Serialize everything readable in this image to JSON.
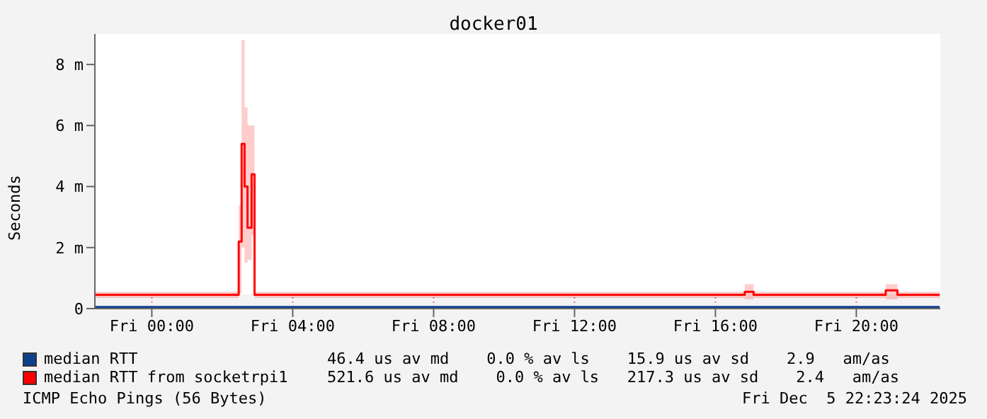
{
  "chart_data": {
    "type": "step",
    "title": "docker01",
    "ylabel": "Seconds",
    "xlim": [
      "2025-12-04T22:23",
      "2025-12-05T22:23"
    ],
    "xticks": [
      {
        "value": "2025-12-05T00:00",
        "label": "Fri 00:00"
      },
      {
        "value": "2025-12-05T04:00",
        "label": "Fri 04:00"
      },
      {
        "value": "2025-12-05T08:00",
        "label": "Fri 08:00"
      },
      {
        "value": "2025-12-05T12:00",
        "label": "Fri 12:00"
      },
      {
        "value": "2025-12-05T16:00",
        "label": "Fri 16:00"
      },
      {
        "value": "2025-12-05T20:00",
        "label": "Fri 20:00"
      }
    ],
    "ylim": [
      0,
      9
    ],
    "yticks": [
      0,
      {
        "value": 2,
        "label": "2 m"
      },
      {
        "value": 4,
        "label": "4 m"
      },
      {
        "value": 6,
        "label": "6 m"
      },
      {
        "value": 8,
        "label": "8 m"
      }
    ],
    "grid": true,
    "legend": "bottom",
    "series": [
      {
        "name": "median RTT",
        "color": "#0f3f8f",
        "x": [
          "2025-12-04T22:24",
          "2025-12-05T22:22"
        ],
        "values": [
          0.05,
          0.05
        ]
      },
      {
        "name": "median RTT from socketrpi1",
        "color": "#ff0000",
        "x": [
          "2025-12-04T22:24",
          "2025-12-05T02:28",
          "2025-12-05T02:33",
          "2025-12-05T02:38",
          "2025-12-05T02:43",
          "2025-12-05T02:50",
          "2025-12-05T02:55",
          "2025-12-05T16:50",
          "2025-12-05T17:05",
          "2025-12-05T20:50",
          "2025-12-05T21:10",
          "2025-12-05T22:22"
        ],
        "values": [
          0.45,
          2.2,
          5.4,
          4.0,
          2.65,
          4.4,
          0.45,
          0.55,
          0.45,
          0.6,
          0.45,
          0.45
        ],
        "lower": [
          0.35,
          0.5,
          2.0,
          1.5,
          1.6,
          2.4,
          0.35,
          0.3,
          0.35,
          0.3,
          0.35,
          0.35
        ],
        "upper": [
          0.55,
          3.4,
          8.8,
          6.6,
          6.0,
          6.0,
          0.55,
          0.8,
          0.55,
          0.8,
          0.55,
          0.55
        ]
      }
    ],
    "annotations": [
      "46.4 us av md    0.0 % av ls    15.9 us av sd    2.9   am/as",
      "521.6 us av md    0.0 % av ls   217.3 us av sd    2.4   am/as",
      "ICMP Echo Pings (56 Bytes)",
      "Fri Dec  5 22:23:24 2025"
    ]
  }
}
